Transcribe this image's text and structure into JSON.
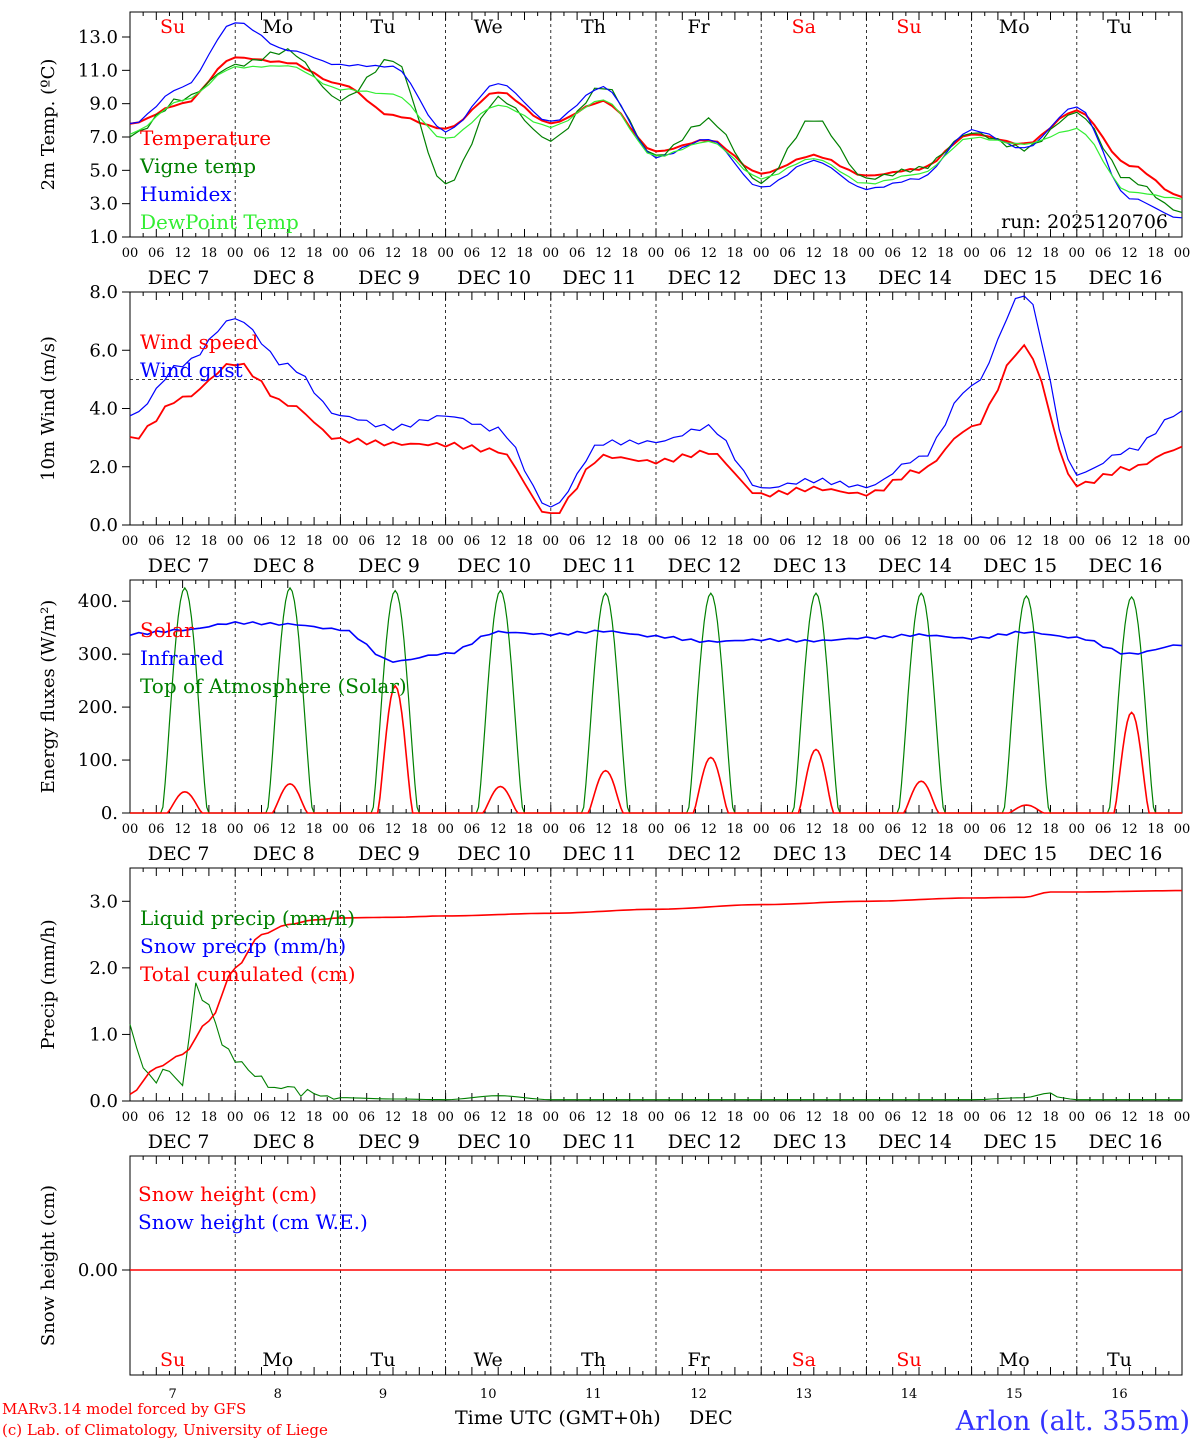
{
  "chart_data": [
    {
      "type": "line",
      "ylabel": "2m Temp. (ºC)",
      "ylim": [
        1.0,
        14.5
      ],
      "yticks": [
        "13.0",
        "11.0",
        "9.0",
        "7.0",
        "5.0",
        "3.0",
        "1.0"
      ],
      "ytick_values": [
        13,
        11,
        9,
        7,
        5,
        3,
        1
      ],
      "legend": [
        "Temperature",
        "Vigne temp",
        "Humidex",
        "DewPoint Temp"
      ],
      "run_label": "run: 2025120706",
      "x_hours": [
        0,
        12,
        24,
        36,
        48,
        60,
        72,
        84,
        96,
        108,
        120,
        132,
        144,
        156,
        168,
        180,
        192,
        204,
        216,
        228,
        240
      ],
      "series": [
        {
          "name": "Temperature",
          "color": "#ff0000",
          "values": [
            7.8,
            9.0,
            11.8,
            11.5,
            10.2,
            8.3,
            7.5,
            9.7,
            7.8,
            9.1,
            6.1,
            6.8,
            4.8,
            5.9,
            4.7,
            5.1,
            7.2,
            6.6,
            8.6,
            5.3,
            3.4
          ]
        },
        {
          "name": "Vigne temp",
          "color": "#008000",
          "values": [
            7.0,
            9.2,
            11.2,
            12.1,
            9.2,
            11.7,
            4.2,
            9.4,
            6.9,
            10.1,
            5.9,
            8.0,
            4.2,
            8.0,
            4.4,
            5.0,
            7.2,
            6.3,
            8.5,
            4.5,
            2.6
          ]
        },
        {
          "name": "Humidex",
          "color": "#0000ff",
          "values": [
            7.8,
            10.0,
            13.9,
            12.2,
            11.3,
            11.2,
            7.3,
            10.2,
            7.9,
            10.0,
            5.8,
            6.9,
            4.0,
            5.6,
            3.9,
            4.5,
            7.4,
            6.3,
            8.8,
            3.3,
            2.1
          ]
        },
        {
          "name": "DewPoint Temp",
          "color": "#33ee33",
          "values": [
            7.2,
            9.2,
            11.2,
            11.3,
            9.9,
            9.6,
            6.9,
            8.9,
            7.6,
            9.2,
            5.8,
            6.7,
            4.5,
            5.7,
            4.2,
            4.8,
            7.0,
            6.6,
            7.5,
            3.7,
            3.3
          ]
        }
      ]
    },
    {
      "type": "line",
      "ylabel": "10m Wind (m/s)",
      "ylim": [
        0.0,
        8.0
      ],
      "yticks": [
        "8.0",
        "6.0",
        "4.0",
        "2.0",
        "0.0"
      ],
      "ytick_values": [
        8,
        6,
        4,
        2,
        0
      ],
      "reference_line": 5.0,
      "legend": [
        "Wind speed",
        "Wind gust"
      ],
      "x_hours": [
        0,
        12,
        24,
        36,
        48,
        60,
        72,
        84,
        96,
        108,
        120,
        132,
        144,
        156,
        168,
        180,
        192,
        204,
        216,
        228,
        240
      ],
      "series": [
        {
          "name": "Wind speed",
          "color": "#ff0000",
          "values": [
            2.9,
            4.3,
            5.5,
            4.1,
            2.9,
            2.8,
            2.8,
            2.6,
            0.4,
            2.4,
            2.2,
            2.5,
            1.0,
            1.2,
            1.0,
            1.8,
            3.3,
            6.1,
            1.4,
            2.0,
            2.7
          ]
        },
        {
          "name": "Wind gust",
          "color": "#0000ff",
          "values": [
            3.7,
            5.5,
            7.1,
            5.5,
            3.8,
            3.4,
            3.8,
            3.3,
            0.6,
            2.8,
            2.8,
            3.3,
            1.2,
            1.5,
            1.3,
            2.3,
            4.8,
            8.0,
            1.8,
            2.6,
            3.9
          ]
        }
      ]
    },
    {
      "type": "line",
      "ylabel": "Energy fluxes (W/m²)",
      "ylim": [
        0,
        440
      ],
      "yticks": [
        "400.",
        "300.",
        "200.",
        "100.",
        "0."
      ],
      "ytick_values": [
        400,
        300,
        200,
        100,
        0
      ],
      "legend": [
        "Solar",
        "Infrared",
        "Top of Atmosphere (Solar)"
      ],
      "daily_toa_peak": [
        425,
        425,
        420,
        420,
        415,
        415,
        415,
        415,
        410,
        408
      ],
      "daily_solar_peak": [
        40,
        55,
        240,
        50,
        80,
        105,
        120,
        60,
        15,
        190
      ],
      "infrared_hours": [
        0,
        12,
        24,
        36,
        48,
        60,
        72,
        84,
        96,
        108,
        120,
        132,
        144,
        156,
        168,
        180,
        192,
        204,
        216,
        228,
        240
      ],
      "infrared_values": [
        338,
        345,
        358,
        355,
        345,
        285,
        300,
        342,
        338,
        345,
        335,
        325,
        328,
        325,
        330,
        335,
        328,
        340,
        330,
        300,
        318
      ],
      "series_colors": {
        "Solar": "#ff0000",
        "Infrared": "#0000ff",
        "Top of Atmosphere (Solar)": "#008000"
      }
    },
    {
      "type": "line",
      "ylabel": "Precip (mm/h)",
      "ylim": [
        0.0,
        3.5
      ],
      "yticks": [
        "3.0",
        "2.0",
        "1.0",
        "0.0"
      ],
      "ytick_values": [
        3,
        2,
        1,
        0
      ],
      "legend": [
        "Liquid precip (mm/h)",
        "Snow precip (mm/h)",
        "Total cumulated (cm)"
      ],
      "series": [
        {
          "name": "Liquid precip (mm/h)",
          "color": "#008000",
          "x": [
            0,
            3,
            6,
            9,
            12,
            15,
            18,
            21,
            24,
            27,
            30,
            33,
            36,
            39,
            42,
            48,
            60,
            72,
            84,
            96,
            120,
            144,
            168,
            192,
            204,
            210,
            212,
            216,
            240
          ],
          "values": [
            1.1,
            0.5,
            0.3,
            0.5,
            0.2,
            1.75,
            1.4,
            0.9,
            0.6,
            0.5,
            0.3,
            0.2,
            0.2,
            0.15,
            0.1,
            0.05,
            0.03,
            0.02,
            0.08,
            0.02,
            0.02,
            0.02,
            0.02,
            0.02,
            0.05,
            0.12,
            0.05,
            0.02,
            0.02
          ]
        },
        {
          "name": "Total cumulated (cm)",
          "color": "#ff0000",
          "x": [
            0,
            6,
            12,
            18,
            24,
            30,
            36,
            42,
            48,
            60,
            72,
            96,
            120,
            144,
            168,
            192,
            204,
            210,
            216,
            240
          ],
          "values": [
            0.1,
            0.5,
            0.7,
            1.2,
            2.0,
            2.5,
            2.65,
            2.72,
            2.75,
            2.76,
            2.78,
            2.82,
            2.88,
            2.95,
            3.0,
            3.05,
            3.06,
            3.14,
            3.14,
            3.16
          ]
        }
      ]
    },
    {
      "type": "line",
      "ylabel": "Snow height (cm)",
      "yticks": [
        "0.00"
      ],
      "legend": [
        "Snow height (cm)",
        "Snow height (cm W.E.)"
      ],
      "series": [
        {
          "name": "Snow height (cm)",
          "color": "#ff0000",
          "values": [
            0.0,
            0.0
          ]
        }
      ]
    }
  ],
  "x_axis": {
    "hour_labels": [
      "00",
      "06",
      "12",
      "18"
    ],
    "final_hour_label": "00",
    "day_labels": [
      "DEC  7",
      "DEC  8",
      "DEC  9",
      "DEC 10",
      "DEC 11",
      "DEC 12",
      "DEC 13",
      "DEC 14",
      "DEC 15",
      "DEC 16"
    ],
    "weekday_labels": [
      "Su",
      "Mo",
      "Tu",
      "We",
      "Th",
      "Fr",
      "Sa",
      "Su",
      "Mo",
      "Tu"
    ],
    "weekday_colors": [
      "#ff0000",
      "#000000",
      "#000000",
      "#000000",
      "#000000",
      "#000000",
      "#ff0000",
      "#ff0000",
      "#000000",
      "#000000"
    ],
    "day_numbers": [
      "7",
      "8",
      "9",
      "10",
      "11",
      "12",
      "13",
      "14",
      "15",
      "16"
    ],
    "title": "Time UTC (GMT+0h)",
    "month": "DEC"
  },
  "footer": {
    "model_line": "MARv3.14 model forced by GFS",
    "copyright_line": "(c) Lab. of Climatology, University of Liege",
    "station": "Arlon (alt. 355m)"
  },
  "colors": {
    "red": "#ff0000",
    "green": "#008000",
    "blue": "#0000ff",
    "lightgreen": "#33ee33",
    "black": "#000000"
  }
}
